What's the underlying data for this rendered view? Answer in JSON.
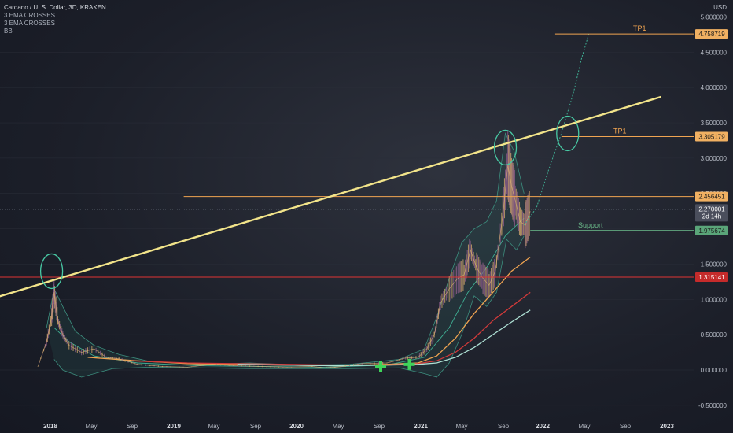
{
  "header": {
    "symbol_line": "Cardano / U. S. Dollar, 3D, KRAKEN",
    "indicators": [
      "3 EMA CROSSES",
      "3 EMA CROSSES",
      "BB"
    ]
  },
  "currency_label": "USD",
  "chart_data": {
    "type": "line",
    "ylim": [
      -0.5,
      5.0
    ],
    "y_ticks": [
      5.0,
      4.5,
      4.0,
      3.5,
      3.0,
      2.5,
      2.0,
      1.5,
      1.0,
      0.5,
      0.0,
      -0.5
    ],
    "y_tick_labels": [
      "5.000000",
      "4.500000",
      "4.000000",
      "3.500000",
      "3.000000",
      "2.500000",
      "2.000000",
      "1.500000",
      "1.000000",
      "0.500000",
      "0.000000",
      "-0.500000"
    ],
    "x_ticks": [
      {
        "label": "2018",
        "bold": true
      },
      {
        "label": "May",
        "bold": false
      },
      {
        "label": "Sep",
        "bold": false
      },
      {
        "label": "2019",
        "bold": true
      },
      {
        "label": "May",
        "bold": false
      },
      {
        "label": "Sep",
        "bold": false
      },
      {
        "label": "2020",
        "bold": true
      },
      {
        "label": "May",
        "bold": false
      },
      {
        "label": "Sep",
        "bold": false
      },
      {
        "label": "2021",
        "bold": true
      },
      {
        "label": "May",
        "bold": false
      },
      {
        "label": "Sep",
        "bold": false
      },
      {
        "label": "2022",
        "bold": true
      },
      {
        "label": "May",
        "bold": false
      },
      {
        "label": "Sep",
        "bold": false
      },
      {
        "label": "2023",
        "bold": true
      }
    ],
    "price_series": {
      "name": "ADAUSD",
      "x": [
        2017.9,
        2017.97,
        2018.01,
        2018.03,
        2018.06,
        2018.1,
        2018.15,
        2018.25,
        2018.35,
        2018.45,
        2018.55,
        2018.7,
        2018.9,
        2019.1,
        2019.3,
        2019.5,
        2019.7,
        2019.9,
        2020.1,
        2020.2,
        2020.3,
        2020.5,
        2020.7,
        2020.85,
        2020.95,
        2021.02,
        2021.08,
        2021.13,
        2021.2,
        2021.27,
        2021.32,
        2021.37,
        2021.42,
        2021.47,
        2021.52,
        2021.57,
        2021.63,
        2021.67,
        2021.7,
        2021.73,
        2021.77,
        2021.81,
        2021.85
      ],
      "values": [
        0.05,
        0.4,
        0.75,
        1.1,
        0.7,
        0.5,
        0.35,
        0.25,
        0.3,
        0.18,
        0.16,
        0.08,
        0.05,
        0.04,
        0.08,
        0.06,
        0.05,
        0.04,
        0.05,
        0.03,
        0.04,
        0.09,
        0.1,
        0.17,
        0.18,
        0.3,
        0.5,
        0.95,
        1.15,
        1.3,
        1.35,
        1.7,
        1.45,
        1.3,
        1.2,
        1.4,
        2.2,
        2.9,
        2.6,
        2.4,
        2.1,
        2.05,
        2.25
      ]
    },
    "ema_series": [
      {
        "color": "#f0a451",
        "x": [
          2018.3,
          2018.7,
          2019.1,
          2019.5,
          2019.9,
          2020.3,
          2020.7,
          2020.95,
          2021.1,
          2021.25,
          2021.4,
          2021.55,
          2021.7,
          2021.85
        ],
        "values": [
          0.18,
          0.13,
          0.09,
          0.08,
          0.07,
          0.06,
          0.08,
          0.1,
          0.2,
          0.45,
          0.8,
          1.1,
          1.4,
          1.6
        ]
      },
      {
        "color": "#d03a3a",
        "x": [
          2018.65,
          2019.1,
          2019.5,
          2019.9,
          2020.3,
          2020.7,
          2020.95,
          2021.1,
          2021.25,
          2021.4,
          2021.55,
          2021.7,
          2021.85
        ],
        "values": [
          0.13,
          0.1,
          0.09,
          0.08,
          0.07,
          0.07,
          0.09,
          0.13,
          0.25,
          0.45,
          0.7,
          0.9,
          1.1
        ]
      },
      {
        "color": "#aee0d4",
        "x": [
          2019.5,
          2019.9,
          2020.3,
          2020.7,
          2020.95,
          2021.1,
          2021.25,
          2021.4,
          2021.55,
          2021.7,
          2021.85
        ],
        "values": [
          0.08,
          0.07,
          0.06,
          0.07,
          0.08,
          0.1,
          0.18,
          0.32,
          0.5,
          0.68,
          0.85
        ]
      }
    ],
    "bb_upper": {
      "x": [
        2017.97,
        2018.03,
        2018.1,
        2018.2,
        2018.35,
        2018.55,
        2018.8,
        2019.2,
        2019.6,
        2020.0,
        2020.4,
        2020.8,
        2021.0,
        2021.1,
        2021.2,
        2021.3,
        2021.4,
        2021.5,
        2021.58,
        2021.65,
        2021.72,
        2021.8
      ],
      "values": [
        0.6,
        1.15,
        0.9,
        0.55,
        0.35,
        0.22,
        0.12,
        0.08,
        0.1,
        0.07,
        0.08,
        0.15,
        0.3,
        0.75,
        1.3,
        1.8,
        2.0,
        2.1,
        2.4,
        3.35,
        3.1,
        2.5
      ]
    },
    "bb_lower": {
      "x": [
        2018.03,
        2018.1,
        2018.25,
        2018.5,
        2018.8,
        2019.2,
        2019.6,
        2020.0,
        2020.4,
        2020.8,
        2021.0,
        2021.1,
        2021.2,
        2021.3,
        2021.4,
        2021.5,
        2021.58,
        2021.66,
        2021.74,
        2021.8
      ],
      "values": [
        0.15,
        0.0,
        -0.1,
        0.02,
        0.04,
        0.03,
        0.02,
        0.02,
        0.02,
        0.03,
        -0.05,
        -0.1,
        0.1,
        0.5,
        1.05,
        0.9,
        1.1,
        1.85,
        1.7,
        1.9
      ]
    },
    "bb_basis": {
      "x": [
        2018.03,
        2018.15,
        2018.35,
        2018.7,
        2019.2,
        2019.7,
        2020.2,
        2020.7,
        2021.0,
        2021.2,
        2021.35,
        2021.5,
        2021.65,
        2021.8
      ],
      "values": [
        0.6,
        0.4,
        0.2,
        0.1,
        0.06,
        0.05,
        0.04,
        0.07,
        0.18,
        0.6,
        1.1,
        1.45,
        1.9,
        2.15
      ]
    },
    "projection_path": {
      "x": [
        2021.8,
        2021.9,
        2022.0,
        2022.1,
        2022.2,
        2022.26,
        2022.32
      ],
      "values": [
        2.05,
        2.3,
        2.85,
        3.35,
        3.95,
        4.4,
        4.76
      ]
    },
    "trendline": {
      "x": [
        2017.55,
        2022.9
      ],
      "values": [
        1.02,
        3.87
      ]
    },
    "horizontal_levels": [
      {
        "value": 4.758719,
        "label": "4.758719",
        "color": "#f0a451",
        "x_start": 2022.05,
        "annotation": "TP1"
      },
      {
        "value": 3.305179,
        "label": "3.305179",
        "color": "#f0a451",
        "x_start": 2022.1,
        "annotation": "TP1"
      },
      {
        "value": 2.456451,
        "label": "2.456451",
        "color": "#f0a451",
        "x_start": 2019.07,
        "annotation": ""
      },
      {
        "value": 1.975674,
        "label": "1.975674",
        "color": "#6dbf8d",
        "x_start": 2021.85,
        "annotation": "Support"
      },
      {
        "value": 1.315141,
        "label": "1.315141",
        "color": "#e03434",
        "x_start": 2017.55,
        "annotation": ""
      }
    ],
    "current_price": {
      "value": 2.270001,
      "label": "2.270001",
      "countdown": "2d 14h"
    },
    "circles": [
      {
        "x": 2018.01,
        "y": 1.4
      },
      {
        "x": 2021.65,
        "y": 3.15
      },
      {
        "x": 2022.15,
        "y": 3.35
      }
    ],
    "cross_markers": [
      {
        "x": 2020.65,
        "y": 0.05
      },
      {
        "x": 2020.88,
        "y": 0.08
      }
    ]
  }
}
